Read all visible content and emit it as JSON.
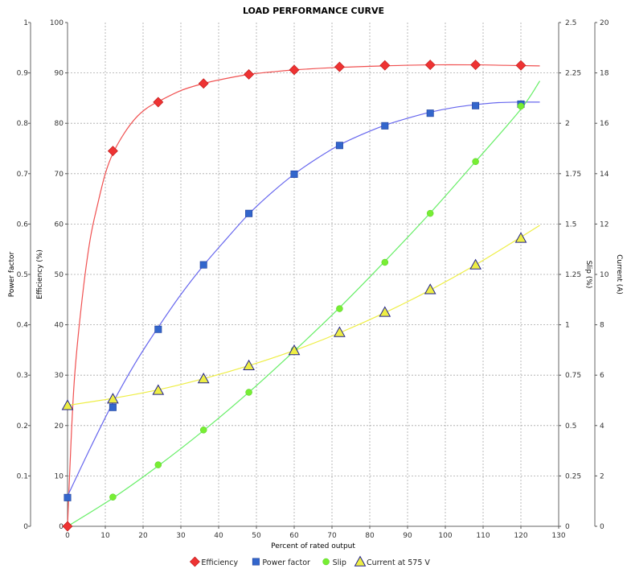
{
  "chart_data": {
    "type": "line",
    "title": "LOAD PERFORMANCE CURVE",
    "xlabel": "Percent of rated output",
    "xlim": [
      0,
      130
    ],
    "xticks": [
      "0",
      "10",
      "20",
      "30",
      "40",
      "50",
      "60",
      "70",
      "80",
      "90",
      "100",
      "110",
      "120",
      "130"
    ],
    "grid": true,
    "legend_position": "bottom",
    "axes": {
      "power_factor": {
        "label": "Power factor",
        "lim": [
          0,
          1
        ],
        "ticks": [
          "0",
          "0.1",
          "0.2",
          "0.3",
          "0.4",
          "0.5",
          "0.6",
          "0.7",
          "0.8",
          "0.9",
          "1"
        ]
      },
      "efficiency": {
        "label": "Efficiency (%)",
        "lim": [
          0,
          100
        ],
        "ticks": [
          "0",
          "10",
          "20",
          "30",
          "40",
          "50",
          "60",
          "70",
          "80",
          "90",
          "100"
        ]
      },
      "slip": {
        "label": "Slip (%)",
        "lim": [
          0,
          2.5
        ],
        "ticks": [
          "0",
          "0.25",
          "0.5",
          "0.75",
          "1",
          "1.25",
          "1.5",
          "1.75",
          "2",
          "2.25",
          "2.5"
        ]
      },
      "current": {
        "label": "Current (A)",
        "lim": [
          0,
          20
        ],
        "ticks": [
          "0",
          "2",
          "4",
          "6",
          "8",
          "10",
          "12",
          "14",
          "16",
          "18",
          "20"
        ]
      }
    },
    "series": [
      {
        "name": "Efficiency",
        "axis": "efficiency",
        "color": "#ee3333",
        "line_color": "#f05050",
        "marker": "diamond",
        "points": [
          [
            0,
            0
          ],
          [
            12,
            74.5
          ],
          [
            24,
            84.2
          ],
          [
            36,
            87.9
          ],
          [
            48,
            89.7
          ],
          [
            60,
            90.6
          ],
          [
            72,
            91.2
          ],
          [
            84,
            91.5
          ],
          [
            96,
            91.6
          ],
          [
            108,
            91.6
          ],
          [
            120,
            91.5
          ]
        ],
        "curve": [
          [
            0,
            0
          ],
          [
            1,
            18
          ],
          [
            2,
            31
          ],
          [
            4,
            46
          ],
          [
            6,
            57
          ],
          [
            8,
            64
          ],
          [
            10,
            70
          ],
          [
            12,
            74
          ],
          [
            15,
            78
          ],
          [
            18,
            81
          ],
          [
            21,
            83
          ],
          [
            24,
            84.3
          ],
          [
            30,
            86.5
          ],
          [
            36,
            87.9
          ],
          [
            42,
            88.9
          ],
          [
            48,
            89.7
          ],
          [
            54,
            90.2
          ],
          [
            60,
            90.6
          ],
          [
            72,
            91.1
          ],
          [
            84,
            91.4
          ],
          [
            96,
            91.6
          ],
          [
            108,
            91.6
          ],
          [
            116,
            91.5
          ],
          [
            125,
            91.4
          ]
        ]
      },
      {
        "name": "Power factor",
        "axis": "power_factor",
        "color": "#3366cc",
        "line_color": "#6666ee",
        "marker": "square",
        "points": [
          [
            0,
            0.057
          ],
          [
            12,
            0.236
          ],
          [
            24,
            0.391
          ],
          [
            36,
            0.519
          ],
          [
            48,
            0.621
          ],
          [
            60,
            0.699
          ],
          [
            72,
            0.756
          ],
          [
            84,
            0.795
          ],
          [
            96,
            0.82
          ],
          [
            108,
            0.835
          ],
          [
            120,
            0.838
          ]
        ],
        "curve": [
          [
            0,
            0.06
          ],
          [
            6,
            0.155
          ],
          [
            12,
            0.245
          ],
          [
            18,
            0.325
          ],
          [
            24,
            0.395
          ],
          [
            30,
            0.46
          ],
          [
            36,
            0.518
          ],
          [
            42,
            0.57
          ],
          [
            48,
            0.62
          ],
          [
            54,
            0.662
          ],
          [
            60,
            0.699
          ],
          [
            66,
            0.73
          ],
          [
            72,
            0.757
          ],
          [
            78,
            0.778
          ],
          [
            84,
            0.796
          ],
          [
            90,
            0.81
          ],
          [
            96,
            0.822
          ],
          [
            102,
            0.831
          ],
          [
            108,
            0.837
          ],
          [
            114,
            0.841
          ],
          [
            120,
            0.842
          ],
          [
            125,
            0.842
          ]
        ]
      },
      {
        "name": "Slip",
        "axis": "slip",
        "color": "#77ee33",
        "line_color": "#66ee66",
        "marker": "circle",
        "points": [
          [
            12,
            0.145
          ],
          [
            24,
            0.305
          ],
          [
            36,
            0.478
          ],
          [
            48,
            0.665
          ],
          [
            60,
            0.875
          ],
          [
            72,
            1.08
          ],
          [
            84,
            1.31
          ],
          [
            96,
            1.553
          ],
          [
            108,
            1.81
          ],
          [
            120,
            2.085
          ]
        ],
        "curve": [
          [
            0,
            0
          ],
          [
            12,
            0.14
          ],
          [
            24,
            0.3
          ],
          [
            36,
            0.475
          ],
          [
            48,
            0.665
          ],
          [
            60,
            0.87
          ],
          [
            72,
            1.085
          ],
          [
            84,
            1.315
          ],
          [
            96,
            1.555
          ],
          [
            108,
            1.81
          ],
          [
            120,
            2.07
          ],
          [
            125,
            2.21
          ]
        ]
      },
      {
        "name": "Current at 575 V",
        "axis": "current",
        "color": "#eeee44",
        "line_color": "#eeee44",
        "marker": "triangle",
        "points": [
          [
            0,
            4.8
          ],
          [
            12,
            5.06
          ],
          [
            24,
            5.4
          ],
          [
            36,
            5.86
          ],
          [
            48,
            6.38
          ],
          [
            60,
            6.98
          ],
          [
            72,
            7.7
          ],
          [
            84,
            8.5
          ],
          [
            96,
            9.4
          ],
          [
            108,
            10.38
          ],
          [
            120,
            11.44
          ]
        ],
        "curve": [
          [
            0,
            4.8
          ],
          [
            12,
            5.08
          ],
          [
            24,
            5.42
          ],
          [
            36,
            5.86
          ],
          [
            48,
            6.38
          ],
          [
            60,
            6.98
          ],
          [
            72,
            7.68
          ],
          [
            84,
            8.48
          ],
          [
            96,
            9.38
          ],
          [
            108,
            10.38
          ],
          [
            120,
            11.48
          ],
          [
            125,
            11.95
          ]
        ]
      }
    ]
  }
}
